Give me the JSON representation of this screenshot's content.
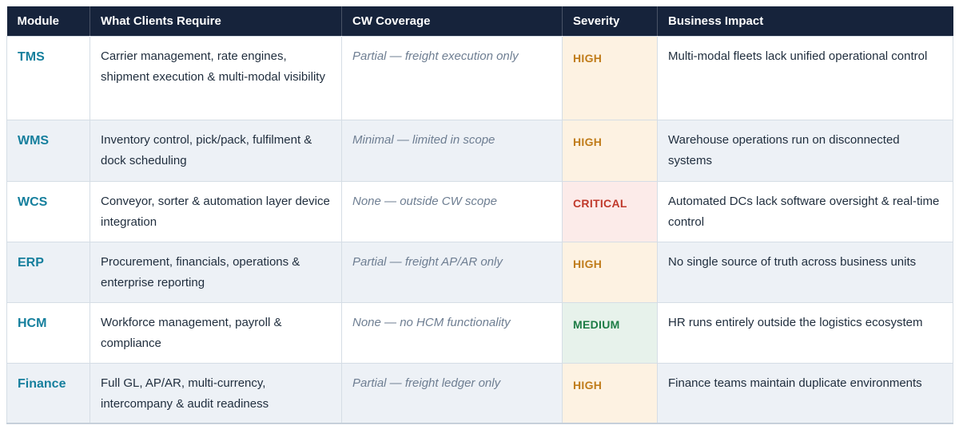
{
  "table": {
    "columns": [
      {
        "label": "Module"
      },
      {
        "label": "What Clients Require"
      },
      {
        "label": "CW Coverage"
      },
      {
        "label": "Severity"
      },
      {
        "label": "Business Impact"
      }
    ],
    "rows": [
      {
        "module": "TMS",
        "requires": "Carrier management, rate engines, shipment execution & multi-modal visibility",
        "coverage": "Partial — freight execution only",
        "severity": "HIGH",
        "impact": "Multi-modal fleets lack unified operational control"
      },
      {
        "module": "WMS",
        "requires": "Inventory control, pick/pack, fulfilment & dock scheduling",
        "coverage": "Minimal — limited in scope",
        "severity": "HIGH",
        "impact": "Warehouse operations run on disconnected systems"
      },
      {
        "module": "WCS",
        "requires": "Conveyor, sorter & automation layer device integration",
        "coverage": "None — outside CW scope",
        "severity": "CRITICAL",
        "impact": "Automated DCs lack software oversight & real-time control"
      },
      {
        "module": "ERP",
        "requires": "Procurement, financials, operations & enterprise reporting",
        "coverage": "Partial — freight AP/AR only",
        "severity": "HIGH",
        "impact": "No single source of truth across business units"
      },
      {
        "module": "HCM",
        "requires": "Workforce management, payroll & compliance",
        "coverage": "None — no HCM functionality",
        "severity": "MEDIUM",
        "impact": "HR runs entirely outside the logistics ecosystem"
      },
      {
        "module": "Finance",
        "requires": "Full GL, AP/AR, multi-currency, intercompany & audit readiness",
        "coverage": "Partial — freight ledger only",
        "severity": "HIGH",
        "impact": "Finance teams maintain duplicate environments"
      }
    ]
  },
  "severity_styles": {
    "HIGH": {
      "bg": "#fdf2e2",
      "color": "#c07c1a"
    },
    "CRITICAL": {
      "bg": "#fcebe9",
      "color": "#c0392b"
    },
    "MEDIUM": {
      "bg": "#e7f2eb",
      "color": "#1d7c45"
    }
  },
  "colors": {
    "header_bg": "#16233b",
    "header_text": "#ffffff",
    "module_accent": "#157f9d",
    "body_text": "#1f2d3d",
    "coverage_text": "#6e7e92",
    "row_alt_bg": "#edf1f6",
    "border": "#d5dde5"
  }
}
